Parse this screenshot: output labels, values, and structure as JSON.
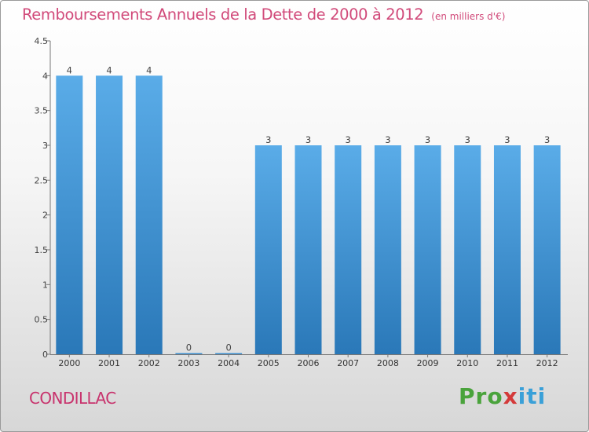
{
  "title": "Remboursements Annuels de la Dette de 2000 à 2012",
  "unit": "(en milliers d'€)",
  "city": "CONDILLAC",
  "logo": {
    "p1": "Pro",
    "p2": "x",
    "p3": "iti"
  },
  "colors": {
    "title": "#d14a7a",
    "bar_light": "#5aace8",
    "bar_dark": "#2a78b8",
    "axis": "#777777"
  },
  "chart_data": {
    "type": "bar",
    "categories": [
      "2000",
      "2001",
      "2002",
      "2003",
      "2004",
      "2005",
      "2006",
      "2007",
      "2008",
      "2009",
      "2010",
      "2011",
      "2012"
    ],
    "values": [
      4,
      4,
      4,
      0,
      0,
      3,
      3,
      3,
      3,
      3,
      3,
      3,
      3
    ],
    "data_labels": [
      "4",
      "4",
      "4",
      "0",
      "0",
      "3",
      "3",
      "3",
      "3",
      "3",
      "3",
      "3",
      "3"
    ],
    "yticks": [
      "0",
      "0.5",
      "1",
      "1.5",
      "2",
      "2.5",
      "3",
      "3.5",
      "4",
      "4.5"
    ],
    "ylim": [
      0,
      4.5
    ],
    "grid": false,
    "legend": "none"
  }
}
